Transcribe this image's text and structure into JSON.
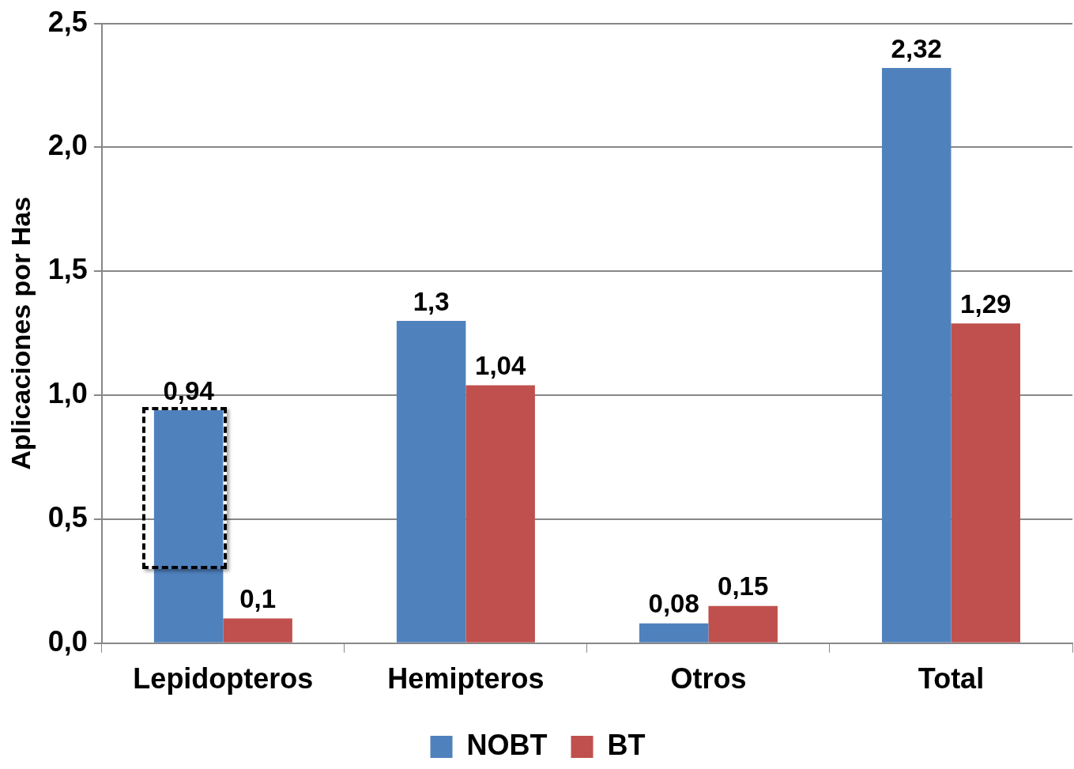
{
  "chart_data": {
    "type": "bar",
    "ylabel": "Aplicaciones por Has",
    "categories": [
      "Lepidopteros",
      "Hemipteros",
      "Otros",
      "Total"
    ],
    "series": [
      {
        "name": "NOBT",
        "color": "#4f81bd",
        "values": [
          0.94,
          1.3,
          0.08,
          2.32
        ],
        "value_labels": [
          "0,94",
          "1,3",
          "0,08",
          "2,32"
        ]
      },
      {
        "name": "BT",
        "color": "#c0504d",
        "values": [
          0.1,
          1.04,
          0.15,
          1.29
        ],
        "value_labels": [
          "0,1",
          "1,04",
          "0,15",
          "1,29"
        ]
      }
    ],
    "ylim": [
      0,
      2.5
    ],
    "yticks": [
      {
        "value": 0,
        "label": "0,0"
      },
      {
        "value": 0.5,
        "label": "0,5"
      },
      {
        "value": 1,
        "label": "1,0"
      },
      {
        "value": 1.5,
        "label": "1,5"
      },
      {
        "value": 2,
        "label": "2,0"
      },
      {
        "value": 2.5,
        "label": "2,5"
      }
    ],
    "grid": "y",
    "legend": "bottom"
  }
}
